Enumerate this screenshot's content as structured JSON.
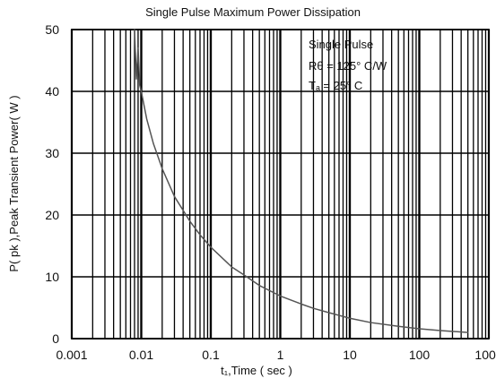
{
  "chart_data": {
    "type": "line",
    "title": "Single Pulse Maximum Power Dissipation",
    "xlabel": "t₁,Time ( sec )",
    "ylabel": "P( pk ),Peak Transient Power( W )",
    "x_scale": "log",
    "xlim": [
      0.001,
      1000
    ],
    "ylim": [
      0,
      50
    ],
    "x_ticks": [
      "0.001",
      "0.01",
      "0.1",
      "1",
      "10",
      "100",
      "1000"
    ],
    "y_ticks": [
      "0",
      "10",
      "20",
      "30",
      "40",
      "50"
    ],
    "grid": true,
    "annotation_lines": [
      "Single Pulse",
      "Rθ = 125° C/W",
      "Tₐ = 25° C"
    ],
    "series": [
      {
        "x": [
          0.008,
          0.0085,
          0.009,
          0.0095,
          0.01,
          0.012,
          0.015,
          0.02,
          0.03,
          0.05,
          0.07,
          0.1,
          0.2,
          0.3,
          0.5,
          1,
          2,
          3,
          5,
          10,
          20,
          50,
          100,
          200,
          500
        ],
        "values": [
          50,
          42,
          47,
          41,
          40,
          35.5,
          31.5,
          27.5,
          23,
          19,
          16.8,
          14.8,
          11.6,
          10.3,
          8.6,
          6.9,
          5.6,
          4.9,
          4.2,
          3.3,
          2.6,
          2.0,
          1.6,
          1.3,
          1.0
        ]
      }
    ],
    "colors": {
      "background": "#ffffff",
      "grid": "#000000",
      "curve": "#555555",
      "text": "#111111"
    }
  }
}
